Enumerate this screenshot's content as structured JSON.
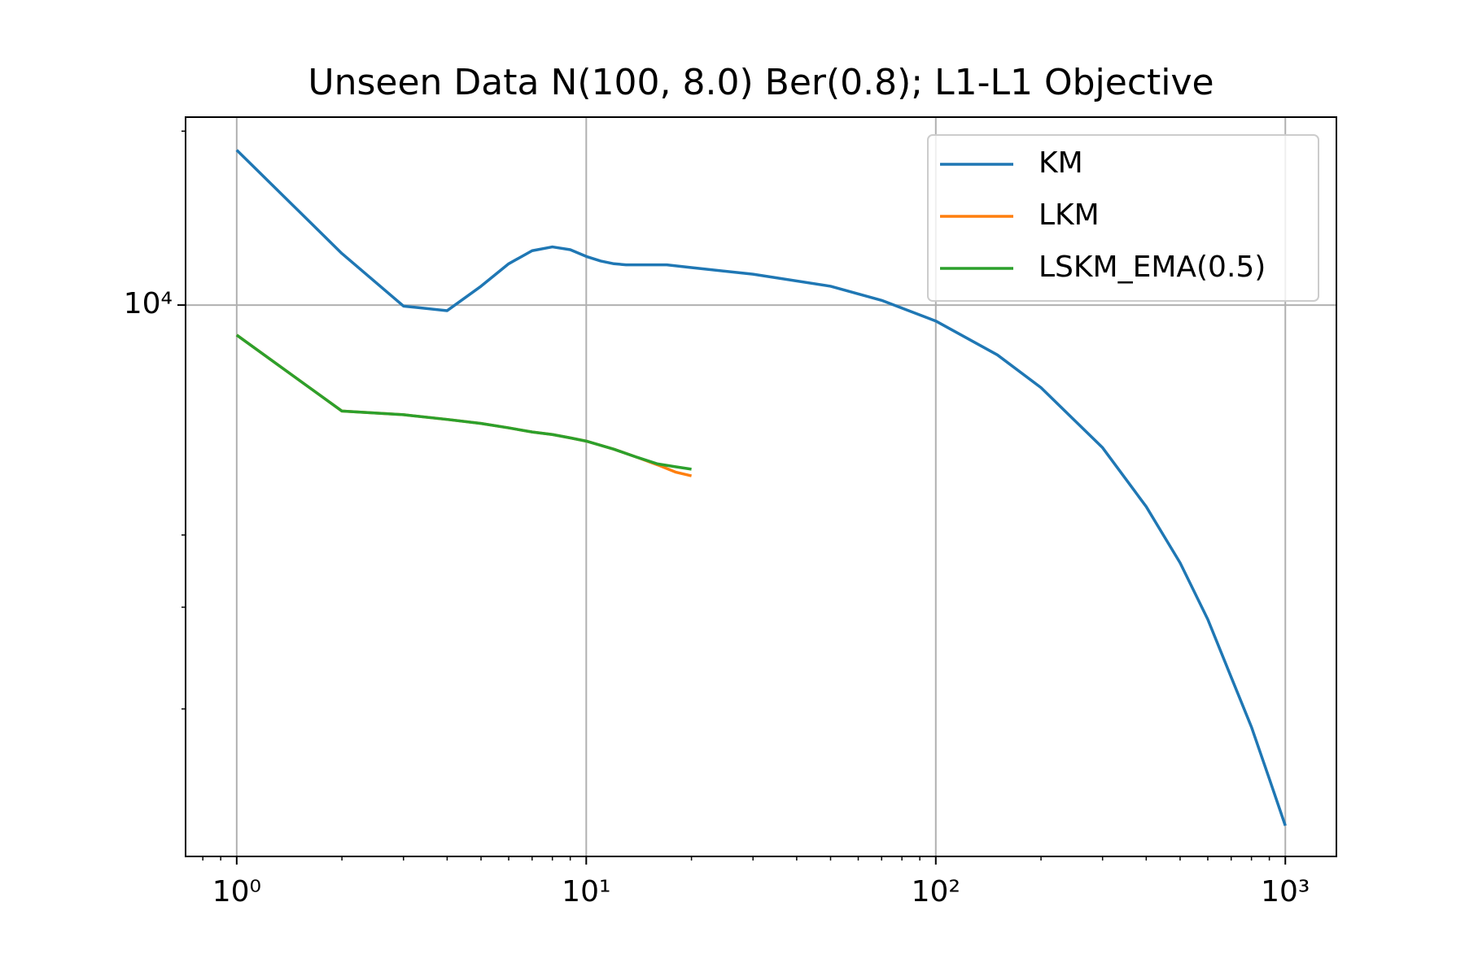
{
  "chart_data": {
    "type": "line",
    "title": "Unseen Data N(100, 8.0) Ber(0.8); L1-L1 Objective",
    "xscale": "log",
    "yscale": "log",
    "grid": true,
    "legend": "upper right",
    "xlim": [
      0.714,
      1400
    ],
    "ylim": [
      1111,
      21150
    ],
    "xticks": [
      {
        "value": 1,
        "label": "10⁰"
      },
      {
        "value": 10,
        "label": "10¹"
      },
      {
        "value": 100,
        "label": "10²"
      },
      {
        "value": 1000,
        "label": "10³"
      }
    ],
    "xminor": [
      0.8,
      0.9,
      2,
      3,
      4,
      5,
      6,
      7,
      8,
      9,
      20,
      30,
      40,
      50,
      60,
      70,
      80,
      90,
      200,
      300,
      400,
      500,
      600,
      700,
      800,
      900
    ],
    "yticks": [
      {
        "value": 10000,
        "label": "10⁴"
      }
    ],
    "yminor": [
      2000,
      3000,
      4000,
      20000
    ],
    "series": [
      {
        "name": "KM",
        "color": "#1f77b4",
        "x": [
          1,
          2,
          3,
          4,
          5,
          6,
          7,
          8,
          9,
          10,
          11,
          12,
          13,
          15,
          17,
          20,
          30,
          50,
          70,
          100,
          150,
          200,
          300,
          400,
          500,
          600,
          700,
          800,
          900,
          1000
        ],
        "values": [
          18550,
          12280,
          9960,
          9780,
          10780,
          11790,
          12420,
          12610,
          12470,
          12140,
          11920,
          11790,
          11740,
          11740,
          11740,
          11610,
          11310,
          10780,
          10190,
          9384,
          8200,
          7196,
          5665,
          4478,
          3580,
          2858,
          2270,
          1861,
          1514,
          1256
        ]
      },
      {
        "name": "LKM",
        "color": "#ff7f0e",
        "x": [
          1,
          2,
          3,
          4,
          5,
          6,
          7,
          8,
          9,
          10,
          12,
          14,
          16,
          18,
          20
        ],
        "values": [
          8873,
          6555,
          6460,
          6340,
          6240,
          6130,
          6030,
          5970,
          5890,
          5815,
          5630,
          5450,
          5290,
          5140,
          5063
        ]
      },
      {
        "name": "LSKM_EMA(0.5)",
        "color": "#2ca02c",
        "x": [
          1,
          2,
          3,
          4,
          5,
          6,
          7,
          8,
          9,
          10,
          12,
          14,
          16,
          18,
          20
        ],
        "values": [
          8873,
          6555,
          6460,
          6340,
          6240,
          6130,
          6030,
          5970,
          5890,
          5815,
          5630,
          5450,
          5310,
          5250,
          5200
        ]
      }
    ]
  }
}
